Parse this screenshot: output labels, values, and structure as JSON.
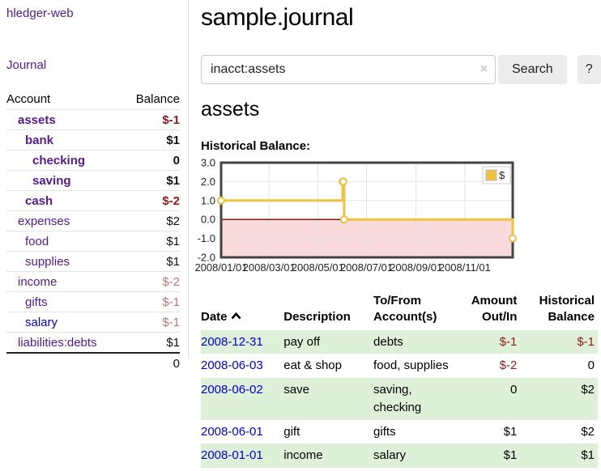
{
  "app": {
    "brand": "hledger-web",
    "nav_journal": "Journal"
  },
  "sidebar": {
    "header": {
      "account": "Account",
      "balance": "Balance"
    },
    "accounts": [
      {
        "name": "assets",
        "depth": 1,
        "emph": true,
        "balance": "$-1",
        "balance_style": "neg-strong"
      },
      {
        "name": "bank",
        "depth": 2,
        "emph": true,
        "balance": "$1",
        "balance_style": ""
      },
      {
        "name": "checking",
        "depth": 3,
        "emph": true,
        "balance": "0",
        "balance_style": ""
      },
      {
        "name": "saving",
        "depth": 3,
        "emph": true,
        "balance": "$1",
        "balance_style": ""
      },
      {
        "name": "cash",
        "depth": 2,
        "emph": true,
        "balance": "$-2",
        "balance_style": "neg-strong"
      },
      {
        "name": "expenses",
        "depth": 1,
        "emph": false,
        "balance": "$2",
        "balance_style": ""
      },
      {
        "name": "food",
        "depth": 2,
        "emph": false,
        "balance": "$1",
        "balance_style": ""
      },
      {
        "name": "supplies",
        "depth": 2,
        "emph": false,
        "balance": "$1",
        "balance_style": ""
      },
      {
        "name": "income",
        "depth": 1,
        "emph": false,
        "balance": "$-2",
        "balance_style": "neg-soft"
      },
      {
        "name": "gifts",
        "depth": 2,
        "emph": false,
        "balance": "$-1",
        "balance_style": "neg-soft"
      },
      {
        "name": "salary",
        "depth": 2,
        "emph": false,
        "balance": "$-1",
        "balance_style": "neg-soft",
        "link": "blue"
      },
      {
        "name": "liabilities:debts",
        "depth": 1,
        "emph": false,
        "balance": "$1",
        "balance_style": ""
      }
    ],
    "total": "0"
  },
  "main": {
    "title": "sample.journal",
    "search": {
      "value": "inacct:assets",
      "clear_icon": "×",
      "button_label": "Search",
      "help_label": "?"
    },
    "account_heading": "assets"
  },
  "chart_data": {
    "type": "line",
    "step": true,
    "title": "Historical Balance:",
    "series": [
      {
        "name": "$",
        "color": "#edc240",
        "points": [
          {
            "date": "2008-01-01",
            "x_day": 0,
            "y": 1
          },
          {
            "date": "2008-06-01",
            "x_day": 152,
            "y": 2
          },
          {
            "date": "2008-06-02",
            "x_day": 153,
            "y": 2
          },
          {
            "date": "2008-06-03",
            "x_day": 154,
            "y": 0
          },
          {
            "date": "2008-12-31",
            "x_day": 365,
            "y": -1
          }
        ]
      }
    ],
    "ylim": [
      -2,
      3
    ],
    "yticks": [
      "3.0",
      "2.0",
      "1.0",
      "0.0",
      "-1.0",
      "-2.0"
    ],
    "xticks": [
      "2008/01/01",
      "2008/03/01",
      "2008/05/01",
      "2008/07/01",
      "2008/09/01",
      "2008/11/01"
    ],
    "xtick_days": [
      0,
      60,
      121,
      182,
      244,
      305
    ],
    "xrange_days": [
      0,
      365
    ],
    "grid": true,
    "legend_position": "top-right",
    "negative_fill": "#fadbdb",
    "zero_line_color": "#7c0000",
    "border_color": "#434343"
  },
  "register": {
    "headers": [
      "Date",
      "Description",
      "To/From Account(s)",
      "Amount Out/In",
      "Historical Balance"
    ],
    "sort": {
      "column": "Date",
      "direction": "ascending"
    },
    "rows": [
      {
        "date": "2008-12-31",
        "description": "pay off",
        "accounts": "debts",
        "amount": "$-1",
        "amount_negative": true,
        "balance": "$-1",
        "balance_negative": true
      },
      {
        "date": "2008-06-03",
        "description": "eat & shop",
        "accounts": "food, supplies",
        "amount": "$-2",
        "amount_negative": true,
        "balance": "0",
        "balance_negative": false
      },
      {
        "date": "2008-06-02",
        "description": "save",
        "accounts": "saving, checking",
        "amount": "0",
        "amount_negative": false,
        "balance": "$2",
        "balance_negative": false
      },
      {
        "date": "2008-06-01",
        "description": "gift",
        "accounts": "gifts",
        "amount": "$1",
        "amount_negative": false,
        "balance": "$2",
        "balance_negative": false
      },
      {
        "date": "2008-01-01",
        "description": "income",
        "accounts": "salary",
        "amount": "$1",
        "amount_negative": false,
        "balance": "$1",
        "balance_negative": false
      }
    ]
  },
  "colors": {
    "link_purple": "#551a8b",
    "link_blue": "#0000cc",
    "negative_strong": "#8f1a1a",
    "negative_soft": "#bd7575",
    "stripe_green": "#dff0d8",
    "chart_line_gold": "#edc240",
    "chart_negative_fill": "#fadbdb",
    "chart_zero_line": "#7c0000"
  }
}
